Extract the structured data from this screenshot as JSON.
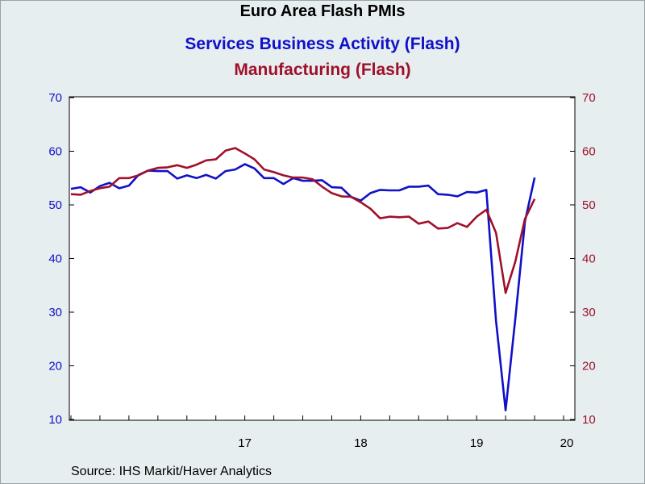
{
  "chart_data": {
    "type": "line",
    "title": "Euro Area Flash PMIs",
    "source": "Source:  IHS Markit/Haver Analytics",
    "x_start": "2016-01",
    "x_end": "2020-05",
    "x_tick_labels": [
      "17",
      "18",
      "19",
      "20"
    ],
    "y_left": {
      "min": 10,
      "max": 70,
      "ticks": [
        10,
        20,
        30,
        40,
        50,
        60,
        70
      ],
      "color": "#1010c8"
    },
    "y_right": {
      "min": 10,
      "max": 70,
      "ticks": [
        10,
        20,
        30,
        40,
        50,
        60,
        70
      ],
      "color": "#a0102a"
    },
    "grid": false,
    "series": [
      {
        "name": "Services Business Activity (Flash)",
        "color": "#1010c8",
        "axis": "left",
        "values": [
          53.0,
          53.3,
          52.3,
          53.5,
          54.1,
          53.1,
          53.6,
          55.6,
          56.4,
          56.3,
          56.3,
          54.9,
          55.5,
          55.0,
          55.6,
          54.9,
          56.3,
          56.6,
          57.6,
          56.8,
          55.0,
          55.0,
          53.9,
          55.0,
          54.5,
          54.5,
          54.6,
          53.3,
          53.2,
          51.5,
          50.8,
          52.2,
          52.8,
          52.7,
          52.7,
          53.4,
          53.4,
          53.6,
          52.0,
          51.9,
          51.6,
          52.4,
          52.3,
          52.8,
          28.4,
          11.7,
          28.7,
          46.9,
          55.1
        ]
      },
      {
        "name": "Manufacturing (Flash)",
        "color": "#a0102a",
        "axis": "right",
        "values": [
          52.0,
          51.9,
          52.6,
          53.1,
          53.4,
          55.0,
          55.0,
          55.5,
          56.4,
          56.9,
          57.0,
          57.4,
          56.9,
          57.5,
          58.3,
          58.5,
          60.1,
          60.6,
          59.6,
          58.5,
          56.6,
          56.1,
          55.5,
          55.1,
          55.1,
          54.8,
          53.4,
          52.2,
          51.6,
          51.5,
          50.5,
          49.3,
          47.5,
          47.8,
          47.7,
          47.8,
          46.5,
          46.9,
          45.6,
          45.7,
          46.6,
          45.9,
          47.8,
          49.1,
          44.8,
          33.6,
          39.4,
          47.4,
          51.1
        ]
      }
    ]
  }
}
